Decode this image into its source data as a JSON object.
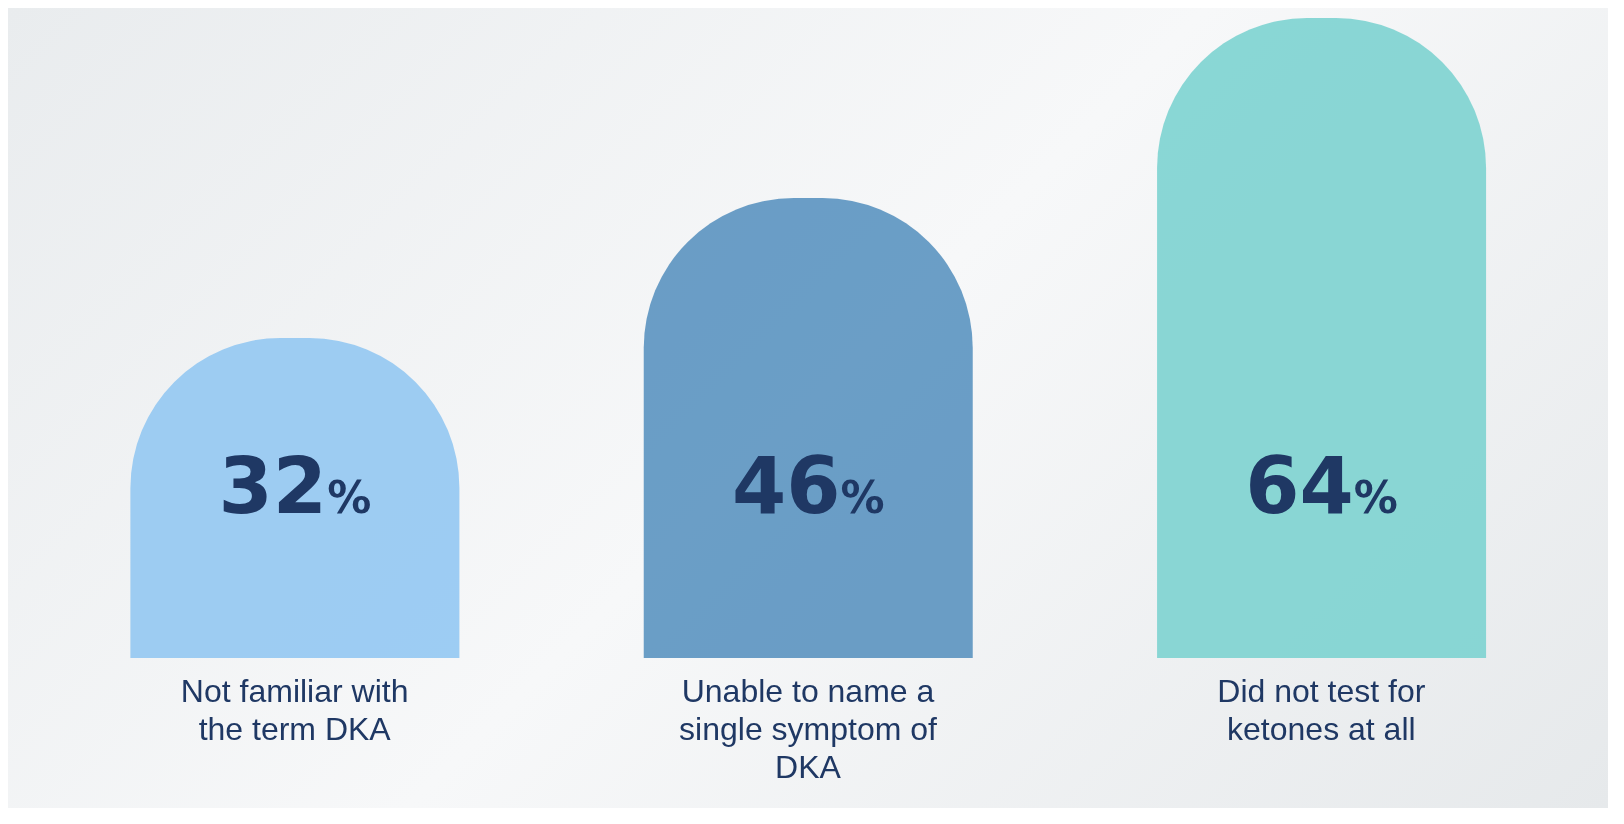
{
  "chart_data": {
    "type": "bar",
    "categories": [
      "Not familiar with the term DKA",
      "Unable to name a single symptom of DKA",
      "Did not test for ketones at all"
    ],
    "values": [
      32,
      46,
      64
    ],
    "colors": [
      "#93c8f2",
      "#5b93c0",
      "#7dd3d0"
    ],
    "value_labels": [
      "32%",
      "46%",
      "64%"
    ]
  }
}
